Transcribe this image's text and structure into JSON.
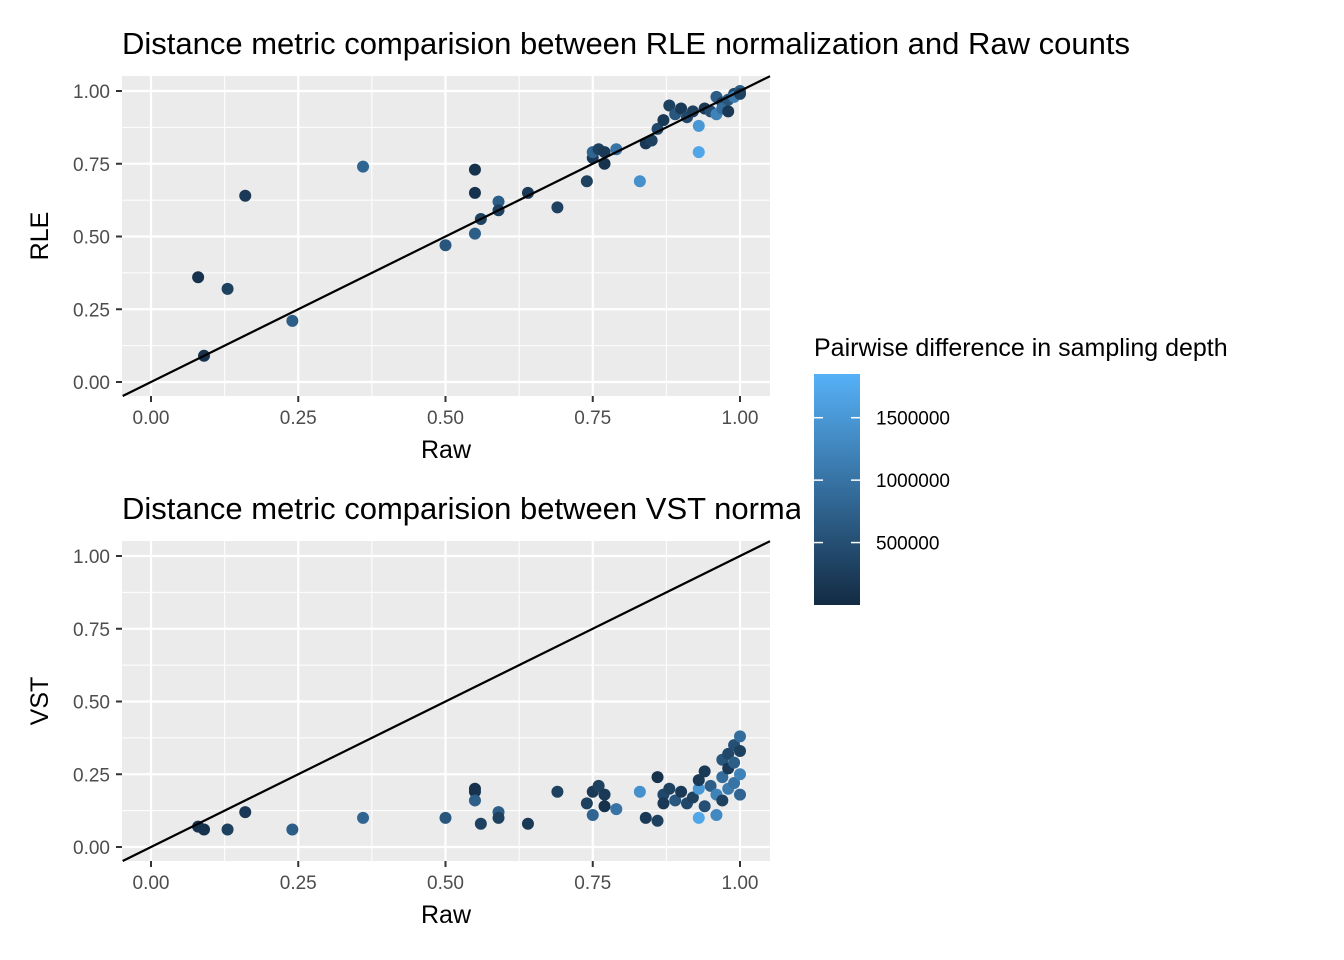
{
  "chart_data": [
    {
      "type": "scatter",
      "title": "Distance metric comparision between RLE normalization and Raw counts",
      "xlabel": "Raw",
      "ylabel": "RLE",
      "xlim": [
        0,
        1
      ],
      "ylim": [
        0,
        1
      ],
      "x_ticks": [
        "0.00",
        "0.25",
        "0.50",
        "0.75",
        "1.00"
      ],
      "y_ticks": [
        "0.00",
        "0.25",
        "0.50",
        "0.75",
        "1.00"
      ],
      "grid": true,
      "reference_line": "y = x",
      "color_variable": "Pairwise difference in sampling depth",
      "points": [
        {
          "x": 0.08,
          "y": 0.36,
          "c": 100000
        },
        {
          "x": 0.09,
          "y": 0.09,
          "c": 100000
        },
        {
          "x": 0.13,
          "y": 0.32,
          "c": 300000
        },
        {
          "x": 0.16,
          "y": 0.64,
          "c": 200000
        },
        {
          "x": 0.24,
          "y": 0.21,
          "c": 700000
        },
        {
          "x": 0.36,
          "y": 0.74,
          "c": 800000
        },
        {
          "x": 0.5,
          "y": 0.47,
          "c": 600000
        },
        {
          "x": 0.55,
          "y": 0.73,
          "c": 100000
        },
        {
          "x": 0.55,
          "y": 0.65,
          "c": 100000
        },
        {
          "x": 0.55,
          "y": 0.51,
          "c": 700000
        },
        {
          "x": 0.56,
          "y": 0.56,
          "c": 300000
        },
        {
          "x": 0.59,
          "y": 0.62,
          "c": 700000
        },
        {
          "x": 0.59,
          "y": 0.59,
          "c": 300000
        },
        {
          "x": 0.64,
          "y": 0.65,
          "c": 200000
        },
        {
          "x": 0.69,
          "y": 0.6,
          "c": 300000
        },
        {
          "x": 0.74,
          "y": 0.69,
          "c": 300000
        },
        {
          "x": 0.75,
          "y": 0.77,
          "c": 200000
        },
        {
          "x": 0.75,
          "y": 0.79,
          "c": 800000
        },
        {
          "x": 0.76,
          "y": 0.8,
          "c": 300000
        },
        {
          "x": 0.77,
          "y": 0.75,
          "c": 100000
        },
        {
          "x": 0.77,
          "y": 0.79,
          "c": 200000
        },
        {
          "x": 0.79,
          "y": 0.8,
          "c": 1000000
        },
        {
          "x": 0.83,
          "y": 0.69,
          "c": 1400000
        },
        {
          "x": 0.84,
          "y": 0.82,
          "c": 200000
        },
        {
          "x": 0.85,
          "y": 0.83,
          "c": 300000
        },
        {
          "x": 0.86,
          "y": 0.87,
          "c": 400000
        },
        {
          "x": 0.87,
          "y": 0.9,
          "c": 200000
        },
        {
          "x": 0.88,
          "y": 0.95,
          "c": 300000
        },
        {
          "x": 0.89,
          "y": 0.92,
          "c": 600000
        },
        {
          "x": 0.9,
          "y": 0.94,
          "c": 200000
        },
        {
          "x": 0.91,
          "y": 0.91,
          "c": 400000
        },
        {
          "x": 0.92,
          "y": 0.93,
          "c": 300000
        },
        {
          "x": 0.93,
          "y": 0.88,
          "c": 1500000
        },
        {
          "x": 0.93,
          "y": 0.79,
          "c": 1700000
        },
        {
          "x": 0.94,
          "y": 0.94,
          "c": 200000
        },
        {
          "x": 0.95,
          "y": 0.93,
          "c": 500000
        },
        {
          "x": 0.96,
          "y": 0.98,
          "c": 700000
        },
        {
          "x": 0.96,
          "y": 0.92,
          "c": 1200000
        },
        {
          "x": 0.97,
          "y": 0.96,
          "c": 300000
        },
        {
          "x": 0.97,
          "y": 0.94,
          "c": 900000
        },
        {
          "x": 0.98,
          "y": 0.97,
          "c": 600000
        },
        {
          "x": 0.98,
          "y": 0.93,
          "c": 200000
        },
        {
          "x": 0.99,
          "y": 0.99,
          "c": 400000
        },
        {
          "x": 0.99,
          "y": 0.98,
          "c": 1100000
        },
        {
          "x": 1.0,
          "y": 1.0,
          "c": 700000
        },
        {
          "x": 1.0,
          "y": 0.99,
          "c": 300000
        }
      ]
    },
    {
      "type": "scatter",
      "title": "Distance metric comparision between VST normalization and Raw counts",
      "xlabel": "Raw",
      "ylabel": "VST",
      "xlim": [
        0,
        1
      ],
      "ylim": [
        0,
        1
      ],
      "x_ticks": [
        "0.00",
        "0.25",
        "0.50",
        "0.75",
        "1.00"
      ],
      "y_ticks": [
        "0.00",
        "0.25",
        "0.50",
        "0.75",
        "1.00"
      ],
      "grid": true,
      "reference_line": "y = x",
      "color_variable": "Pairwise difference in sampling depth",
      "points": [
        {
          "x": 0.08,
          "y": 0.07,
          "c": 100000
        },
        {
          "x": 0.09,
          "y": 0.06,
          "c": 100000
        },
        {
          "x": 0.13,
          "y": 0.06,
          "c": 300000
        },
        {
          "x": 0.16,
          "y": 0.12,
          "c": 200000
        },
        {
          "x": 0.24,
          "y": 0.06,
          "c": 700000
        },
        {
          "x": 0.36,
          "y": 0.1,
          "c": 800000
        },
        {
          "x": 0.5,
          "y": 0.1,
          "c": 600000
        },
        {
          "x": 0.55,
          "y": 0.2,
          "c": 100000
        },
        {
          "x": 0.55,
          "y": 0.19,
          "c": 100000
        },
        {
          "x": 0.55,
          "y": 0.16,
          "c": 700000
        },
        {
          "x": 0.56,
          "y": 0.08,
          "c": 300000
        },
        {
          "x": 0.59,
          "y": 0.12,
          "c": 700000
        },
        {
          "x": 0.59,
          "y": 0.1,
          "c": 300000
        },
        {
          "x": 0.64,
          "y": 0.08,
          "c": 200000
        },
        {
          "x": 0.69,
          "y": 0.19,
          "c": 300000
        },
        {
          "x": 0.74,
          "y": 0.15,
          "c": 300000
        },
        {
          "x": 0.75,
          "y": 0.19,
          "c": 200000
        },
        {
          "x": 0.75,
          "y": 0.11,
          "c": 800000
        },
        {
          "x": 0.76,
          "y": 0.21,
          "c": 300000
        },
        {
          "x": 0.77,
          "y": 0.14,
          "c": 100000
        },
        {
          "x": 0.77,
          "y": 0.18,
          "c": 200000
        },
        {
          "x": 0.79,
          "y": 0.13,
          "c": 1000000
        },
        {
          "x": 0.83,
          "y": 0.19,
          "c": 1400000
        },
        {
          "x": 0.84,
          "y": 0.1,
          "c": 200000
        },
        {
          "x": 0.86,
          "y": 0.24,
          "c": 100000
        },
        {
          "x": 0.86,
          "y": 0.09,
          "c": 300000
        },
        {
          "x": 0.87,
          "y": 0.18,
          "c": 400000
        },
        {
          "x": 0.87,
          "y": 0.15,
          "c": 200000
        },
        {
          "x": 0.88,
          "y": 0.2,
          "c": 300000
        },
        {
          "x": 0.89,
          "y": 0.16,
          "c": 600000
        },
        {
          "x": 0.9,
          "y": 0.19,
          "c": 200000
        },
        {
          "x": 0.91,
          "y": 0.15,
          "c": 400000
        },
        {
          "x": 0.92,
          "y": 0.17,
          "c": 300000
        },
        {
          "x": 0.93,
          "y": 0.1,
          "c": 1700000
        },
        {
          "x": 0.93,
          "y": 0.2,
          "c": 1500000
        },
        {
          "x": 0.93,
          "y": 0.23,
          "c": 200000
        },
        {
          "x": 0.94,
          "y": 0.14,
          "c": 500000
        },
        {
          "x": 0.94,
          "y": 0.26,
          "c": 200000
        },
        {
          "x": 0.95,
          "y": 0.21,
          "c": 700000
        },
        {
          "x": 0.96,
          "y": 0.18,
          "c": 1200000
        },
        {
          "x": 0.96,
          "y": 0.11,
          "c": 1300000
        },
        {
          "x": 0.97,
          "y": 0.16,
          "c": 300000
        },
        {
          "x": 0.97,
          "y": 0.24,
          "c": 900000
        },
        {
          "x": 0.97,
          "y": 0.3,
          "c": 600000
        },
        {
          "x": 0.98,
          "y": 0.2,
          "c": 1100000
        },
        {
          "x": 0.98,
          "y": 0.27,
          "c": 200000
        },
        {
          "x": 0.98,
          "y": 0.32,
          "c": 400000
        },
        {
          "x": 0.99,
          "y": 0.22,
          "c": 1000000
        },
        {
          "x": 0.99,
          "y": 0.29,
          "c": 700000
        },
        {
          "x": 0.99,
          "y": 0.35,
          "c": 500000
        },
        {
          "x": 1.0,
          "y": 0.38,
          "c": 900000
        },
        {
          "x": 1.0,
          "y": 0.33,
          "c": 300000
        },
        {
          "x": 1.0,
          "y": 0.25,
          "c": 1200000
        },
        {
          "x": 1.0,
          "y": 0.18,
          "c": 800000
        }
      ]
    }
  ],
  "legend": {
    "title": "Pairwise difference in sampling depth",
    "labels": [
      "1500000",
      "1000000",
      "500000"
    ],
    "values": [
      1500000,
      1000000,
      500000
    ],
    "min": 0,
    "max": 1850000,
    "colors": {
      "low": "#132B43",
      "high": "#56B1F7"
    }
  },
  "colors": {
    "panel_background": "#EBEBEB",
    "grid_major": "#FFFFFF",
    "reference_line": "#000000",
    "tick_label": "#4D4D4D"
  }
}
